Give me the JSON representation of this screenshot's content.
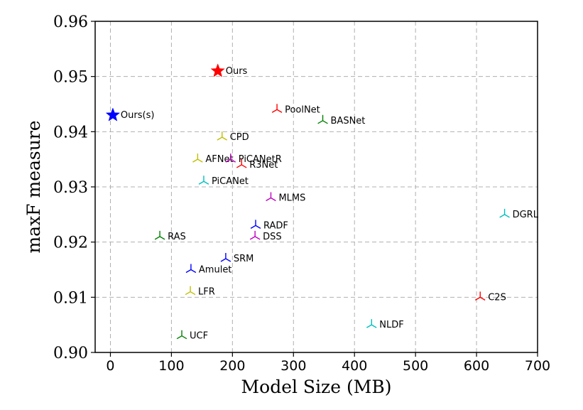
{
  "chart_data": {
    "type": "scatter",
    "xlabel": "Model Size (MB)",
    "ylabel": "maxF measure",
    "xlim": [
      -25,
      700
    ],
    "ylim": [
      0.9,
      0.96
    ],
    "xticks": [
      0,
      100,
      200,
      300,
      400,
      500,
      600,
      700
    ],
    "yticks": [
      0.9,
      0.91,
      0.92,
      0.93,
      0.94,
      0.95,
      0.96
    ],
    "ytick_labels": [
      "0.90",
      "0.91",
      "0.92",
      "0.93",
      "0.94",
      "0.95",
      "0.96"
    ],
    "grid": true,
    "points": [
      {
        "label": "Ours",
        "x": 176,
        "y": 0.951,
        "marker": "star",
        "color": "#ff0000"
      },
      {
        "label": "Ours(s)",
        "x": 4,
        "y": 0.943,
        "marker": "star",
        "color": "#0000ff"
      },
      {
        "label": "PoolNet",
        "x": 273,
        "y": 0.944,
        "marker": "tri",
        "color": "#ff0000"
      },
      {
        "label": "BASNet",
        "x": 348,
        "y": 0.942,
        "marker": "tri",
        "color": "#008000"
      },
      {
        "label": "CPD",
        "x": 183,
        "y": 0.939,
        "marker": "tri",
        "color": "#bfbf00"
      },
      {
        "label": "AFNet",
        "x": 143,
        "y": 0.935,
        "marker": "tri",
        "color": "#bfbf00"
      },
      {
        "label": "PiCANetR",
        "x": 197,
        "y": 0.935,
        "marker": "tri",
        "color": "#bf00bf"
      },
      {
        "label": "R3Net",
        "x": 215,
        "y": 0.934,
        "marker": "tri",
        "color": "#ff0000"
      },
      {
        "label": "PiCANet",
        "x": 153,
        "y": 0.931,
        "marker": "tri",
        "color": "#00bfbf"
      },
      {
        "label": "MLMS",
        "x": 263,
        "y": 0.928,
        "marker": "tri",
        "color": "#bf00bf"
      },
      {
        "label": "DGRL",
        "x": 646,
        "y": 0.925,
        "marker": "tri",
        "color": "#00bfbf"
      },
      {
        "label": "RADF",
        "x": 238,
        "y": 0.923,
        "marker": "tri",
        "color": "#0000ff"
      },
      {
        "label": "RAS",
        "x": 81,
        "y": 0.921,
        "marker": "tri",
        "color": "#008000"
      },
      {
        "label": "DSS",
        "x": 237,
        "y": 0.921,
        "marker": "tri",
        "color": "#bf00bf"
      },
      {
        "label": "SRM",
        "x": 189,
        "y": 0.917,
        "marker": "tri",
        "color": "#0000ff"
      },
      {
        "label": "Amulet",
        "x": 132,
        "y": 0.915,
        "marker": "tri",
        "color": "#0000ff"
      },
      {
        "label": "LFR",
        "x": 131,
        "y": 0.911,
        "marker": "tri",
        "color": "#bfbf00"
      },
      {
        "label": "C2S",
        "x": 606,
        "y": 0.91,
        "marker": "tri",
        "color": "#ff0000"
      },
      {
        "label": "NLDF",
        "x": 428,
        "y": 0.905,
        "marker": "tri",
        "color": "#00bfbf"
      },
      {
        "label": "UCF",
        "x": 117,
        "y": 0.903,
        "marker": "tri",
        "color": "#008000"
      }
    ]
  }
}
